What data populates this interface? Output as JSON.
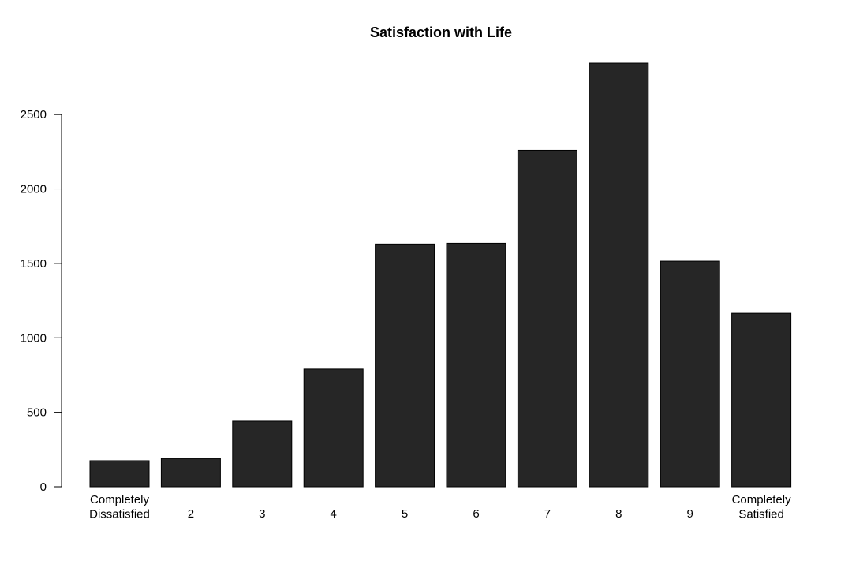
{
  "chart_data": {
    "type": "bar",
    "title": "Satisfaction with Life",
    "xlabel": "",
    "ylabel": "",
    "categories": [
      "Completely Dissatisfied",
      "2",
      "3",
      "4",
      "5",
      "6",
      "7",
      "8",
      "9",
      "Completely Satisfied"
    ],
    "category_lines": [
      [
        "Completely",
        "Dissatisfied"
      ],
      [
        "2"
      ],
      [
        "3"
      ],
      [
        "4"
      ],
      [
        "5"
      ],
      [
        "6"
      ],
      [
        "7"
      ],
      [
        "8"
      ],
      [
        "9"
      ],
      [
        "Completely",
        "Satisfied"
      ]
    ],
    "values": [
      175,
      190,
      440,
      790,
      1630,
      1635,
      2260,
      2845,
      1515,
      1165
    ],
    "yticks": [
      0,
      500,
      1000,
      1500,
      2000,
      2500
    ],
    "ylim": [
      0,
      2845
    ],
    "grid": false,
    "legend": "none",
    "colors": {
      "bar_fill": "#262626",
      "bar_stroke": "#000000",
      "axis": "#000000"
    }
  }
}
